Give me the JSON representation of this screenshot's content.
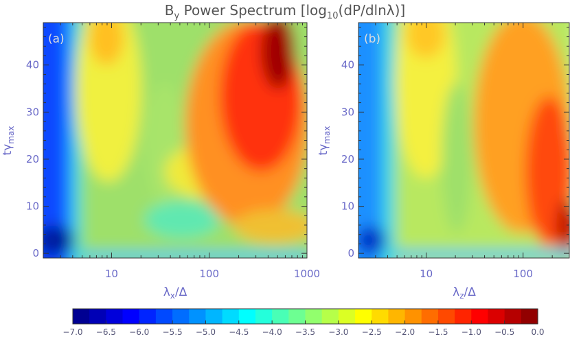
{
  "chart_data": [
    {
      "type": "heatmap",
      "panel_label": "(a)",
      "title_parts": {
        "base": "B",
        "sub": "y",
        "rest": " Power Spectrum [log",
        "sub2": "10",
        "tail": "(dP/dlnλ)]"
      },
      "xlabel_parts": {
        "base": "λ",
        "sub": "x",
        "rest": "/Δ"
      },
      "ylabel_parts": {
        "base": "tγ",
        "sub": "max"
      },
      "x_scale": "log",
      "xlim": [
        2,
        1000
      ],
      "ylim": [
        -1,
        49
      ],
      "x_ticks": [
        10,
        100,
        1000
      ],
      "x_tick_labels": [
        "10",
        "100",
        "1000"
      ],
      "y_ticks": [
        0,
        10,
        20,
        30,
        40
      ],
      "y_tick_labels": [
        "0",
        "10",
        "20",
        "30",
        "40"
      ],
      "features": [
        {
          "x": 500,
          "y": 40,
          "value": -0.3
        },
        {
          "x": 300,
          "y": 28,
          "value": -0.9
        },
        {
          "x": 150,
          "y": 10,
          "value": -2.4
        },
        {
          "x": 40,
          "y": 8,
          "value": -3.9
        },
        {
          "x": 10,
          "y": 35,
          "value": -2.6
        },
        {
          "x": 3,
          "y": 20,
          "value": -5.6
        },
        {
          "x": 2.5,
          "y": 2,
          "value": -6.9
        }
      ]
    },
    {
      "type": "heatmap",
      "panel_label": "(b)",
      "xlabel_parts": {
        "base": "λ",
        "sub": "z",
        "rest": "/Δ"
      },
      "ylabel_parts": {
        "base": "tγ",
        "sub": "max"
      },
      "x_scale": "log",
      "xlim": [
        2,
        300
      ],
      "ylim": [
        -1,
        49
      ],
      "x_ticks": [
        10,
        100
      ],
      "x_tick_labels": [
        "10",
        "100"
      ],
      "y_ticks": [
        0,
        10,
        20,
        30,
        40
      ],
      "y_tick_labels": [
        "0",
        "10",
        "20",
        "30",
        "40"
      ],
      "features": [
        {
          "x": 250,
          "y": 20,
          "value": -1.2
        },
        {
          "x": 120,
          "y": 35,
          "value": -2.3
        },
        {
          "x": 40,
          "y": 15,
          "value": -3.4
        },
        {
          "x": 10,
          "y": 40,
          "value": -2.7
        },
        {
          "x": 3,
          "y": 25,
          "value": -5.1
        },
        {
          "x": 2.5,
          "y": 2,
          "value": -6.5
        }
      ]
    }
  ],
  "colorbar": {
    "min": -7.0,
    "max": 0.0,
    "tick_values": [
      -7.0,
      -6.5,
      -6.0,
      -5.5,
      -5.0,
      -4.5,
      -4.0,
      -3.5,
      -3.0,
      -2.5,
      -2.0,
      -1.5,
      -1.0,
      -0.5,
      0.0
    ],
    "tick_labels": [
      "−7.0",
      "−6.5",
      "−6.0",
      "−5.5",
      "−5.0",
      "−4.5",
      "−4.0",
      "−3.5",
      "−3.0",
      "−2.5",
      "−2.0",
      "−1.5",
      "−1.0",
      "−0.5",
      "0.0"
    ],
    "colormap": "jet",
    "levels": 28
  },
  "colors": {
    "axis": "#6a6ac8",
    "frame": "#333333"
  }
}
